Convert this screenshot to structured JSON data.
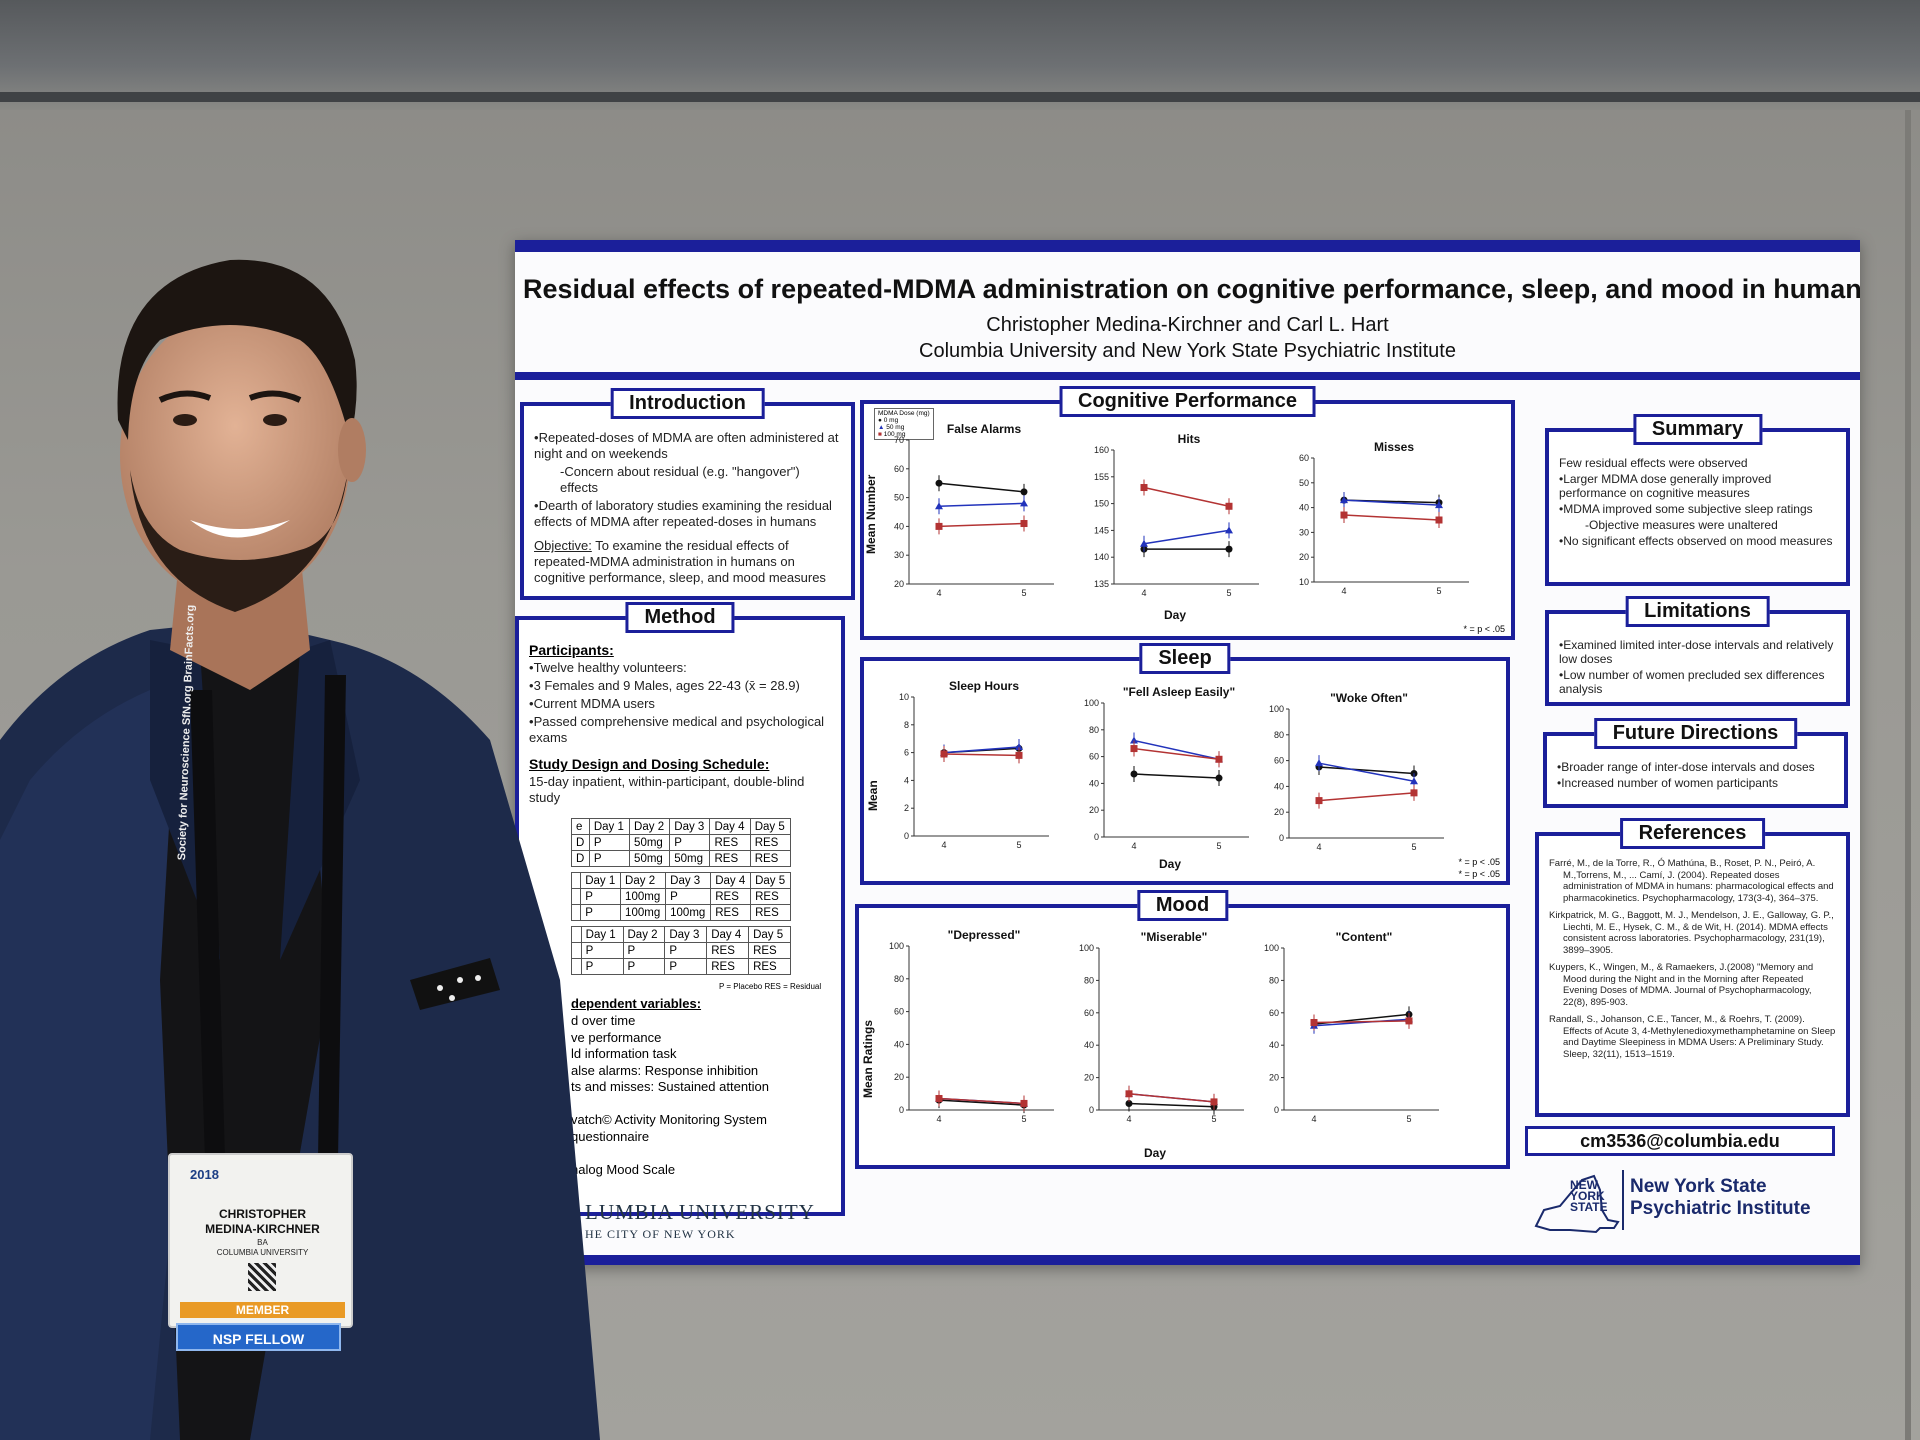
{
  "poster": {
    "title": "Residual effects of repeated-MDMA administration on cognitive performance, sleep, and mood in humans",
    "authors": "Christopher Medina-Kirchner and Carl L. Hart",
    "affiliation": "Columbia University and New York State Psychiatric Institute",
    "introduction": {
      "title": "Introduction",
      "items": [
        "Repeated-doses of MDMA are often administered at night and on weekends",
        "-Concern about residual (e.g. \"hangover\") effects",
        "Dearth of laboratory studies examining the residual effects of MDMA after repeated-doses in humans"
      ],
      "objective_label": "Objective:",
      "objective": "To examine the residual effects of repeated-MDMA administration in humans on cognitive performance, sleep, and mood measures"
    },
    "method": {
      "title": "Method",
      "participants_label": "Participants:",
      "participants": [
        "Twelve healthy volunteers:",
        "3 Females and 9 Males, ages 22-43 (x̄ = 28.9)",
        "Current MDMA users",
        "Passed comprehensive medical and psychological exams"
      ],
      "design_label": "Study Design and Dosing Schedule:",
      "design": "15-day inpatient, within-participant, double-blind study",
      "table1": [
        [
          "e",
          "Day 1",
          "Day 2",
          "Day 3",
          "Day 4",
          "Day 5"
        ],
        [
          "D",
          "P",
          "50mg",
          "P",
          "RES",
          "RES"
        ],
        [
          "D",
          "P",
          "50mg",
          "50mg",
          "RES",
          "RES"
        ]
      ],
      "table2": [
        [
          "",
          "Day 1",
          "Day 2",
          "Day 3",
          "Day 4",
          "Day 5"
        ],
        [
          "",
          "P",
          "100mg",
          "P",
          "RES",
          "RES"
        ],
        [
          "",
          "P",
          "100mg",
          "100mg",
          "RES",
          "RES"
        ]
      ],
      "table3": [
        [
          "",
          "Day 1",
          "Day 2",
          "Day 3",
          "Day 4",
          "Day 5"
        ],
        [
          "",
          "P",
          "P",
          "P",
          "RES",
          "RES"
        ],
        [
          "",
          "P",
          "P",
          "P",
          "RES",
          "RES"
        ]
      ],
      "table_note": "P = Placebo RES = Residual",
      "dv_label": "dependent variables:",
      "dv": [
        "d over time",
        "ve performance",
        "ld information task",
        "alse alarms: Response inhibition",
        "ts and misses: Sustained attention",
        "",
        "vatch© Activity Monitoring System",
        " questionnaire",
        "",
        "nalog Mood Scale"
      ]
    },
    "cognitive": {
      "title": "Cognitive Performance",
      "legend_title": "MDMA Dose (mg)",
      "legend": [
        "0 mg",
        "50 mg",
        "100 mg"
      ],
      "ylabel": "Mean Number",
      "xlabel": "Day",
      "sig_note": "* = p < .05"
    },
    "sleep": {
      "title": "Sleep",
      "ylabel": "Mean",
      "xlabel": "Day",
      "sig_note1": "* = p < .05",
      "sig_note2": "* = p < .05"
    },
    "mood": {
      "title": "Mood",
      "ylabel": "Mean Ratings",
      "xlabel": "Day"
    },
    "summary": {
      "title": "Summary",
      "items": [
        "Few residual effects were observed",
        "Larger MDMA dose generally improved performance on cognitive measures",
        "MDMA improved some subjective sleep ratings",
        "-Objective measures were unaltered",
        "No significant effects observed on mood measures"
      ]
    },
    "limitations": {
      "title": "Limitations",
      "items": [
        "Examined limited inter-dose intervals and relatively low doses",
        "Low number of women precluded sex differences analysis"
      ]
    },
    "future": {
      "title": "Future Directions",
      "items": [
        "Broader range of inter-dose intervals and doses",
        "Increased number of women participants"
      ]
    },
    "references": {
      "title": "References",
      "items": [
        "Farré, M., de la Torre, R., Ó Mathúna, B., Roset, P. N., Peiró, A. M.,Torrens, M., ... Camí, J. (2004). Repeated doses administration of MDMA in humans: pharmacological effects and pharmacokinetics. Psychopharmacology, 173(3-4), 364–375.",
        "Kirkpatrick, M. G., Baggott, M. J., Mendelson, J. E., Galloway, G. P., Liechti, M. E., Hysek, C. M., & de Wit, H. (2014). MDMA effects consistent across laboratories. Psychopharmacology, 231(19), 3899–3905.",
        "Kuypers, K., Wingen, M., & Ramaekers, J.(2008) \"Memory and Mood during the Night and in the Morning after Repeated Evening Doses of MDMA. Journal of Psychopharmacology, 22(8), 895-903.",
        "Randall, S., Johanson, C.E., Tancer, M., & Roehrs, T. (2009). Effects of Acute 3, 4-Methylenedioxymethamphetamine on Sleep and Daytime Sleepiness in MDMA Users: A Preliminary Study. Sleep, 32(11), 1513–1519."
      ]
    },
    "email": "cm3536@columbia.edu",
    "nys_logo": {
      "state1": "NEW",
      "state2": "YORK",
      "state3": "STATE",
      "line1": "New York State",
      "line2": "Psychiatric Institute"
    },
    "cu_logo": {
      "line1": "LUMBIA UNIVERSITY",
      "line2": "HE CITY OF NEW YORK"
    }
  },
  "colors": {
    "poster_blue": "#1b1f9a",
    "dose_0": "#111111",
    "dose_50": "#2233bb",
    "dose_100": "#b33333"
  },
  "chart_data": [
    {
      "type": "line",
      "title": "False Alarms",
      "x": [
        4,
        5
      ],
      "ylim": [
        20,
        70
      ],
      "yticks": [
        20,
        30,
        40,
        50,
        60,
        70
      ],
      "series": [
        {
          "name": "0 mg",
          "values": [
            55,
            52
          ]
        },
        {
          "name": "50 mg",
          "values": [
            47,
            48
          ]
        },
        {
          "name": "100 mg",
          "values": [
            40,
            41
          ]
        }
      ]
    },
    {
      "type": "line",
      "title": "Hits",
      "x": [
        4,
        5
      ],
      "ylim": [
        135,
        160
      ],
      "yticks": [
        135,
        140,
        145,
        150,
        155,
        160
      ],
      "series": [
        {
          "name": "0 mg",
          "values": [
            141.5,
            141.5
          ]
        },
        {
          "name": "50 mg",
          "values": [
            142.5,
            145
          ]
        },
        {
          "name": "100 mg",
          "values": [
            153,
            149.5
          ]
        }
      ]
    },
    {
      "type": "line",
      "title": "Misses",
      "x": [
        4,
        5
      ],
      "ylim": [
        10,
        60
      ],
      "yticks": [
        10,
        20,
        30,
        40,
        50,
        60
      ],
      "series": [
        {
          "name": "0 mg",
          "values": [
            43,
            42
          ]
        },
        {
          "name": "50 mg",
          "values": [
            43,
            41
          ]
        },
        {
          "name": "100 mg",
          "values": [
            37,
            35
          ]
        }
      ]
    },
    {
      "type": "line",
      "title": "Sleep Hours",
      "x": [
        4,
        5
      ],
      "ylim": [
        0,
        10
      ],
      "yticks": [
        0,
        2,
        4,
        6,
        8,
        10
      ],
      "series": [
        {
          "name": "0 mg",
          "values": [
            6,
            6.3
          ]
        },
        {
          "name": "50 mg",
          "values": [
            6,
            6.4
          ]
        },
        {
          "name": "100 mg",
          "values": [
            5.9,
            5.8
          ]
        }
      ]
    },
    {
      "type": "line",
      "title": "\"Fell Asleep Easily\"",
      "x": [
        4,
        5
      ],
      "ylim": [
        0,
        100
      ],
      "yticks": [
        0,
        20,
        40,
        60,
        80,
        100
      ],
      "series": [
        {
          "name": "0 mg",
          "values": [
            47,
            44
          ]
        },
        {
          "name": "50 mg",
          "values": [
            72,
            58
          ]
        },
        {
          "name": "100 mg",
          "values": [
            66,
            58
          ]
        }
      ]
    },
    {
      "type": "line",
      "title": "\"Woke Often\"",
      "x": [
        4,
        5
      ],
      "ylim": [
        0,
        100
      ],
      "yticks": [
        0,
        20,
        40,
        60,
        80,
        100
      ],
      "series": [
        {
          "name": "0 mg",
          "values": [
            55,
            50
          ]
        },
        {
          "name": "50 mg",
          "values": [
            58,
            44
          ]
        },
        {
          "name": "100 mg",
          "values": [
            29,
            35
          ]
        }
      ]
    },
    {
      "type": "line",
      "title": "\"Depressed\"",
      "x": [
        4,
        5
      ],
      "ylim": [
        0,
        100
      ],
      "yticks": [
        0,
        20,
        40,
        60,
        80,
        100
      ],
      "series": [
        {
          "name": "0 mg",
          "values": [
            6,
            3
          ]
        },
        {
          "name": "50 mg",
          "values": [
            7,
            4
          ]
        },
        {
          "name": "100 mg",
          "values": [
            7,
            4
          ]
        }
      ]
    },
    {
      "type": "line",
      "title": "\"Miserable\"",
      "x": [
        4,
        5
      ],
      "ylim": [
        0,
        100
      ],
      "yticks": [
        0,
        20,
        40,
        60,
        80,
        100
      ],
      "series": [
        {
          "name": "0 mg",
          "values": [
            4,
            2
          ]
        },
        {
          "name": "50 mg",
          "values": [
            10,
            5
          ]
        },
        {
          "name": "100 mg",
          "values": [
            10,
            5
          ]
        }
      ]
    },
    {
      "type": "line",
      "title": "\"Content\"",
      "x": [
        4,
        5
      ],
      "ylim": [
        0,
        100
      ],
      "yticks": [
        0,
        20,
        40,
        60,
        80,
        100
      ],
      "series": [
        {
          "name": "0 mg",
          "values": [
            53,
            59
          ]
        },
        {
          "name": "50 mg",
          "values": [
            52,
            56
          ]
        },
        {
          "name": "100 mg",
          "values": [
            54,
            55
          ]
        }
      ]
    }
  ],
  "badge": {
    "year": "2018",
    "name_first": "CHRISTOPHER",
    "name_last": "MEDINA-KIRCHNER",
    "degree": "BA",
    "institution": "COLUMBIA UNIVERSITY",
    "member": "MEMBER",
    "ribbon": "NSP FELLOW"
  },
  "lanyard": {
    "text": "Society for Neuroscience   SfN.org   BrainFacts.org"
  }
}
